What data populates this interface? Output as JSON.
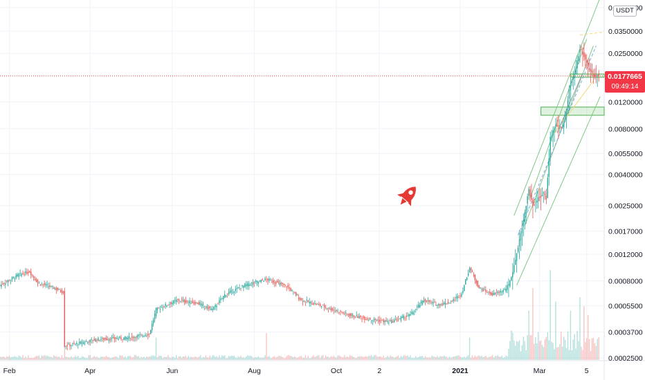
{
  "chart_data": {
    "type": "candlestick",
    "scale": "log",
    "currency": "USDT",
    "grid": true,
    "y_ticks": [
      {
        "value": 0.05,
        "label": "0.0500000"
      },
      {
        "value": 0.035,
        "label": "0.0350000"
      },
      {
        "value": 0.025,
        "label": "0.0250000"
      },
      {
        "value": 0.012,
        "label": "0.0120000"
      },
      {
        "value": 0.008,
        "label": "0.0080000"
      },
      {
        "value": 0.0055,
        "label": "0.0055000"
      },
      {
        "value": 0.004,
        "label": "0.0040000"
      },
      {
        "value": 0.0025,
        "label": "0.0025000"
      },
      {
        "value": 0.0017,
        "label": "0.0017000"
      },
      {
        "value": 0.0012,
        "label": "0.0012000"
      },
      {
        "value": 0.0008,
        "label": "0.0008000"
      },
      {
        "value": 0.00055,
        "label": "0.0005500"
      },
      {
        "value": 0.00037,
        "label": "0.0003700"
      },
      {
        "value": 0.00025,
        "label": "0.0002500"
      }
    ],
    "x_ticks": [
      {
        "date": "2020-02-01",
        "label": "Feb",
        "bold": false
      },
      {
        "date": "2020-04-01",
        "label": "Apr",
        "bold": false
      },
      {
        "date": "2020-06-01",
        "label": "Jun",
        "bold": false
      },
      {
        "date": "2020-08-01",
        "label": "Aug",
        "bold": false
      },
      {
        "date": "2020-10-01",
        "label": "Oct",
        "bold": false
      },
      {
        "date": "2020-11-02",
        "label": "2",
        "bold": false
      },
      {
        "date": "2021-01-01",
        "label": "2021",
        "bold": true
      },
      {
        "date": "2021-03-01",
        "label": "Mar",
        "bold": false
      },
      {
        "date": "2021-04-05",
        "label": "5",
        "bold": false
      }
    ],
    "x_range": [
      "2020-01-25",
      "2021-04-18"
    ],
    "y_range": [
      0.00024,
      0.056
    ],
    "price_path": [
      [
        "2020-01-25",
        0.00075
      ],
      [
        "2020-02-08",
        0.00088
      ],
      [
        "2020-02-16",
        0.00092
      ],
      [
        "2020-02-22",
        0.00078
      ],
      [
        "2020-03-05",
        0.00072
      ],
      [
        "2020-03-12",
        0.00068
      ],
      [
        "2020-03-13",
        0.0003
      ],
      [
        "2020-03-22",
        0.00031
      ],
      [
        "2020-04-05",
        0.00033
      ],
      [
        "2020-05-01",
        0.00034
      ],
      [
        "2020-05-15",
        0.00036
      ],
      [
        "2020-05-20",
        0.00052
      ],
      [
        "2020-06-05",
        0.0006
      ],
      [
        "2020-06-20",
        0.00057
      ],
      [
        "2020-07-01",
        0.00052
      ],
      [
        "2020-07-10",
        0.00065
      ],
      [
        "2020-07-25",
        0.00075
      ],
      [
        "2020-08-10",
        0.00082
      ],
      [
        "2020-08-25",
        0.00074
      ],
      [
        "2020-09-05",
        0.0006
      ],
      [
        "2020-09-20",
        0.00055
      ],
      [
        "2020-10-10",
        0.00048
      ],
      [
        "2020-10-25",
        0.00045
      ],
      [
        "2020-11-10",
        0.00043
      ],
      [
        "2020-11-25",
        0.00048
      ],
      [
        "2020-12-05",
        0.0006
      ],
      [
        "2020-12-15",
        0.00056
      ],
      [
        "2020-12-25",
        0.00058
      ],
      [
        "2021-01-02",
        0.00066
      ],
      [
        "2021-01-08",
        0.00098
      ],
      [
        "2021-01-15",
        0.00072
      ],
      [
        "2021-01-25",
        0.00065
      ],
      [
        "2021-02-03",
        0.0007
      ],
      [
        "2021-02-06",
        0.00075
      ],
      [
        "2021-02-10",
        0.001
      ],
      [
        "2021-02-14",
        0.0015
      ],
      [
        "2021-02-17",
        0.002
      ],
      [
        "2021-02-21",
        0.0032
      ],
      [
        "2021-02-24",
        0.0025
      ],
      [
        "2021-02-28",
        0.0028
      ],
      [
        "2021-03-04",
        0.003
      ],
      [
        "2021-03-06",
        0.0028
      ],
      [
        "2021-03-09",
        0.007
      ],
      [
        "2021-03-13",
        0.0085
      ],
      [
        "2021-03-18",
        0.008
      ],
      [
        "2021-03-21",
        0.011
      ],
      [
        "2021-03-24",
        0.016
      ],
      [
        "2021-03-27",
        0.018
      ],
      [
        "2021-03-31",
        0.027
      ],
      [
        "2021-04-03",
        0.024
      ],
      [
        "2021-04-06",
        0.02
      ],
      [
        "2021-04-10",
        0.018
      ],
      [
        "2021-04-14",
        0.01777
      ]
    ],
    "last_price": 0.0177665,
    "last_price_label": "0.0177665",
    "countdown": "09:49:14",
    "colors": {
      "up": "#26a69a",
      "down": "#ef5350",
      "line": "#787b86",
      "zone_fill": "rgba(76,175,80,0.18)",
      "zone_border": "#4caf50",
      "channel": "#81c784",
      "last_price": "#f23645"
    },
    "zones": [
      {
        "from": "2021-03-02",
        "to": "2021-04-18",
        "low": 0.0098,
        "high": 0.0111
      },
      {
        "from": "2021-03-24",
        "to": "2021-04-18",
        "low": 0.0174,
        "high": 0.0183
      }
    ],
    "annotations": [
      {
        "kind": "channel_line",
        "color": "#81c784",
        "points": [
          [
            "2021-02-12",
            0.00075
          ],
          [
            "2021-04-15",
            0.013
          ]
        ]
      },
      {
        "kind": "channel_line",
        "color": "#81c784",
        "points": [
          [
            "2021-02-10",
            0.00215
          ],
          [
            "2021-04-15",
            0.058
          ]
        ]
      },
      {
        "kind": "channel_line",
        "color": "#81c784",
        "points": [
          [
            "2021-02-18",
            0.00185
          ],
          [
            "2021-04-10",
            0.028
          ]
        ]
      },
      {
        "kind": "channel_line",
        "color": "#81c784",
        "points": [
          [
            "2021-02-22",
            0.0028
          ],
          [
            "2021-04-05",
            0.031
          ]
        ]
      },
      {
        "kind": "dashed",
        "color": "#7fa3e8",
        "points": [
          [
            "2021-02-13",
            0.0016
          ],
          [
            "2021-04-12",
            0.028
          ]
        ]
      },
      {
        "kind": "dashed",
        "color": "#f5d76e",
        "points": [
          [
            "2021-03-31",
            0.033
          ],
          [
            "2021-04-18",
            0.0345
          ]
        ]
      },
      {
        "kind": "solid",
        "color": "#f5d76e",
        "points": [
          [
            "2021-03-12",
            0.0075
          ],
          [
            "2021-04-10",
            0.0165
          ]
        ]
      },
      {
        "kind": "solid",
        "color": "#9598a1",
        "points": [
          [
            "2021-03-14",
            0.0075
          ],
          [
            "2021-04-02",
            0.0185
          ]
        ]
      }
    ],
    "volume": {
      "max_display": 1.0,
      "spikes": [
        [
          "2020-03-13",
          0.45
        ],
        [
          "2020-05-20",
          0.25
        ],
        [
          "2020-08-10",
          0.3
        ],
        [
          "2021-01-08",
          0.25
        ],
        [
          "2021-02-21",
          0.55
        ],
        [
          "2021-02-24",
          0.8
        ],
        [
          "2021-03-09",
          1.0
        ],
        [
          "2021-03-13",
          0.65
        ],
        [
          "2021-03-24",
          0.55
        ],
        [
          "2021-03-31",
          0.7
        ],
        [
          "2021-04-03",
          0.6
        ],
        [
          "2021-04-06",
          0.5
        ]
      ]
    }
  },
  "ui": {
    "currency_button": "USDT",
    "rocket_icon": "rocket-icon"
  }
}
